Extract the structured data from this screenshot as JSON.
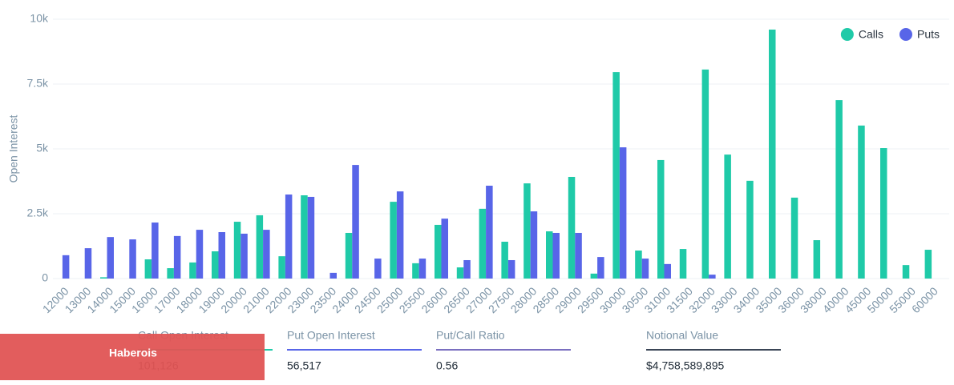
{
  "chart_data": {
    "type": "bar",
    "y_label": "Open Interest",
    "categories": [
      "12000",
      "13000",
      "14000",
      "15000",
      "16000",
      "17000",
      "18000",
      "19000",
      "20000",
      "21000",
      "22000",
      "23000",
      "23500",
      "24000",
      "24500",
      "25000",
      "25500",
      "26000",
      "26500",
      "27000",
      "27500",
      "28000",
      "28500",
      "29000",
      "29500",
      "30000",
      "30500",
      "31000",
      "31500",
      "32000",
      "33000",
      "34000",
      "35000",
      "36000",
      "38000",
      "40000",
      "45000",
      "50000",
      "55000",
      "60000"
    ],
    "series": [
      {
        "name": "Calls",
        "color": "#1fcaa8",
        "values": [
          0,
          0,
          50,
          0,
          740,
          400,
          620,
          1050,
          2190,
          2440,
          860,
          3210,
          0,
          1760,
          0,
          2960,
          590,
          2070,
          430,
          2690,
          1420,
          3670,
          1820,
          3920,
          190,
          7960,
          1080,
          4570,
          1140,
          8060,
          4780,
          3770,
          9600,
          3120,
          1480,
          6880,
          5900,
          5030,
          520,
          1110
        ]
      },
      {
        "name": "Puts",
        "color": "#5865e8",
        "values": [
          900,
          1170,
          1600,
          1510,
          2160,
          1640,
          1880,
          1790,
          1730,
          1880,
          3240,
          3150,
          220,
          4380,
          770,
          3360,
          770,
          2310,
          710,
          3580,
          710,
          2590,
          1760,
          1760,
          830,
          5060,
          770,
          560,
          0,
          150,
          0,
          0,
          0,
          0,
          0,
          0,
          0,
          0,
          0,
          0
        ]
      }
    ],
    "ylim": [
      0,
      10000
    ],
    "yticks": [
      0,
      {
        "value": 2500,
        "label": "2.5k"
      },
      {
        "value": 5000,
        "label": "5k"
      },
      {
        "value": 7500,
        "label": "7.5k"
      },
      {
        "value": 10000,
        "label": "10k"
      }
    ],
    "grid": true,
    "legend": "top-right"
  },
  "stats": [
    {
      "label": "Call Open Interest",
      "value": "101,126",
      "color": "#1fcaa8"
    },
    {
      "label": "Put Open Interest",
      "value": "56,517",
      "color": "#5865e8"
    },
    {
      "label": "Put/Call Ratio",
      "value": "0.56",
      "color": "#7a6fc0"
    },
    {
      "label": "Notional Value",
      "value": "$4,758,589,895",
      "color": "#3a4556"
    }
  ],
  "banner": "Haberois"
}
